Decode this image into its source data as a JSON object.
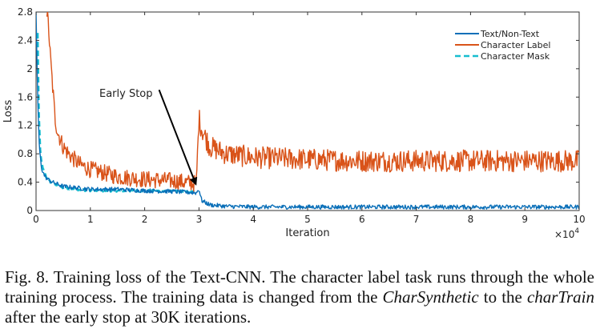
{
  "chart_data": {
    "type": "line",
    "xlabel": "Iteration",
    "ylabel": "Loss",
    "x_multiplier_label": "×10",
    "x_multiplier_exp": "4",
    "xlim": [
      0,
      10
    ],
    "ylim": [
      0,
      2.8
    ],
    "xticks": [
      0,
      1,
      2,
      3,
      4,
      5,
      6,
      7,
      8,
      9,
      10
    ],
    "yticks": [
      0,
      0.4,
      0.8,
      1.2,
      1.6,
      2,
      2.4,
      2.8
    ],
    "ytick_labels": [
      "0",
      "0.4",
      "0.8",
      "1.2",
      "1.6",
      "2",
      "2.4",
      "2.8"
    ],
    "legend_position": "top-right",
    "series": [
      {
        "name": "Text/Non-Text",
        "color": "#0a6fb8",
        "style": "solid",
        "x": [
          0,
          0.03,
          0.06,
          0.1,
          0.15,
          0.2,
          0.3,
          0.5,
          1.0,
          1.5,
          2.0,
          2.5,
          2.95,
          3.0,
          3.05,
          3.2,
          3.5,
          4,
          5,
          6,
          7,
          8,
          9,
          10
        ],
        "y": [
          2.8,
          1.6,
          0.9,
          0.6,
          0.5,
          0.45,
          0.4,
          0.34,
          0.3,
          0.3,
          0.28,
          0.27,
          0.25,
          0.3,
          0.14,
          0.08,
          0.06,
          0.05,
          0.05,
          0.05,
          0.05,
          0.05,
          0.05,
          0.05
        ],
        "noise": 0.03
      },
      {
        "name": "Character Label",
        "color": "#d95319",
        "style": "solid",
        "x": [
          0.2,
          0.23,
          0.26,
          0.3,
          0.35,
          0.4,
          0.5,
          0.6,
          0.8,
          1.0,
          1.5,
          2.0,
          2.5,
          2.95,
          3.0,
          3.05,
          3.2,
          3.5,
          4,
          5,
          6,
          7,
          8,
          9,
          10
        ],
        "y": [
          2.8,
          2.6,
          2.2,
          1.8,
          1.3,
          1.1,
          0.9,
          0.8,
          0.65,
          0.58,
          0.48,
          0.44,
          0.42,
          0.38,
          1.3,
          1.15,
          0.9,
          0.8,
          0.75,
          0.72,
          0.7,
          0.7,
          0.7,
          0.7,
          0.7
        ],
        "noise": 0.12
      },
      {
        "name": "Character Mask",
        "color": "#17becf",
        "style": "dashed",
        "x": [
          0.03,
          0.05,
          0.08,
          0.12,
          0.2,
          0.3,
          0.5,
          1.0,
          1.5,
          2.0,
          2.5,
          2.95
        ],
        "y": [
          2.5,
          1.4,
          0.8,
          0.6,
          0.45,
          0.38,
          0.32,
          0.28,
          0.28,
          0.28,
          0.27,
          0.26
        ],
        "noise": 0.015
      }
    ],
    "annotations": [
      {
        "text": "Early Stop",
        "x": 2.0,
        "y": 1.6,
        "arrow_to": [
          3.0,
          0.35
        ]
      }
    ]
  },
  "caption": {
    "part1": "Fig. 8.    Training loss of the Text-CNN. The character label task runs through the whole training process. The training data is changed from the ",
    "italic1": "CharSynthetic",
    "part2": " to the ",
    "italic2": "charTrain",
    "part3": " after the early stop at 30K iterations."
  }
}
